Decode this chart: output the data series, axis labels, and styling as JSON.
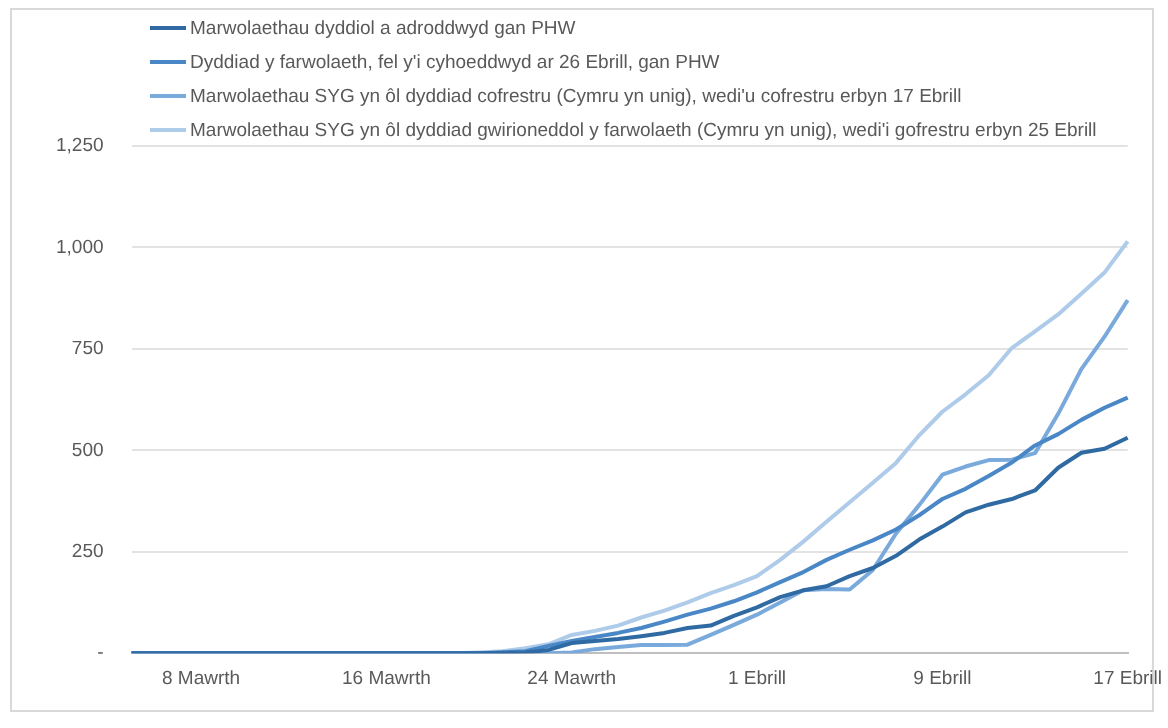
{
  "chart_data": {
    "type": "line",
    "categories": [
      null,
      null,
      null,
      "8 Mawrth",
      null,
      null,
      null,
      null,
      null,
      null,
      null,
      "16 Mawrth",
      null,
      null,
      null,
      null,
      null,
      null,
      null,
      "24 Mawrth",
      null,
      null,
      null,
      null,
      null,
      null,
      null,
      "1 Ebrill",
      null,
      null,
      null,
      null,
      null,
      null,
      null,
      "9 Ebrill",
      null,
      null,
      null,
      null,
      null,
      null,
      null,
      "17 Ebrill"
    ],
    "series": [
      {
        "name": "Marwolaethau dyddiol a adroddwyd gan PHW",
        "color": "#2f6aa3",
        "values": [
          0,
          0,
          0,
          0,
          0,
          0,
          0,
          0,
          0,
          0,
          0,
          0,
          0,
          0,
          0,
          0,
          1,
          2,
          8,
          25,
          30,
          35,
          42,
          50,
          62,
          68,
          92,
          113,
          138,
          155,
          165,
          190,
          210,
          240,
          280,
          312,
          347,
          366,
          380,
          401,
          457,
          494,
          504,
          531
        ]
      },
      {
        "name": "Dyddiad y farwolaeth, fel y'i cyhoeddwyd ar 26 Ebrill, gan PHW",
        "color": "#4a87c7",
        "values": [
          0,
          0,
          0,
          0,
          0,
          0,
          0,
          0,
          0,
          0,
          0,
          0,
          0,
          0,
          0,
          0,
          2,
          5,
          18,
          30,
          40,
          50,
          62,
          78,
          95,
          110,
          128,
          150,
          175,
          200,
          230,
          255,
          278,
          305,
          340,
          380,
          405,
          437,
          470,
          512,
          540,
          575,
          605,
          630
        ]
      },
      {
        "name": "Marwolaethau SYG yn ôl dyddiad cofrestru (Cymru yn unig), wedi'u cofrestru erbyn 17 Ebrill",
        "color": "#7aa9dc",
        "values": [
          0,
          0,
          0,
          0,
          0,
          0,
          0,
          0,
          0,
          0,
          0,
          0,
          0,
          0,
          0,
          0,
          0,
          0,
          0,
          2,
          10,
          15,
          20,
          20,
          21,
          45,
          70,
          95,
          125,
          155,
          158,
          157,
          205,
          295,
          365,
          440,
          460,
          476,
          477,
          493,
          590,
          700,
          780,
          870
        ]
      },
      {
        "name": "Marwolaethau SYG yn ôl dyddiad gwirioneddol y farwolaeth (Cymru yn unig), wedi'i gofrestru erbyn 25 Ebrill",
        "color": "#aecbe9",
        "values": [
          0,
          0,
          0,
          0,
          0,
          0,
          0,
          0,
          0,
          0,
          0,
          0,
          0,
          0,
          0,
          2,
          5,
          12,
          22,
          45,
          55,
          68,
          88,
          105,
          125,
          148,
          168,
          190,
          230,
          275,
          324,
          372,
          420,
          469,
          537,
          595,
          638,
          685,
          752,
          793,
          835,
          886,
          938,
          1015
        ]
      }
    ],
    "ylim": [
      0,
      1250
    ],
    "yticks": [
      {
        "value": 0,
        "label": "-"
      },
      250,
      500,
      750,
      "1,000",
      "1,250"
    ],
    "grid": "y",
    "legend": "top",
    "marker": "none",
    "line_style": "solid"
  }
}
